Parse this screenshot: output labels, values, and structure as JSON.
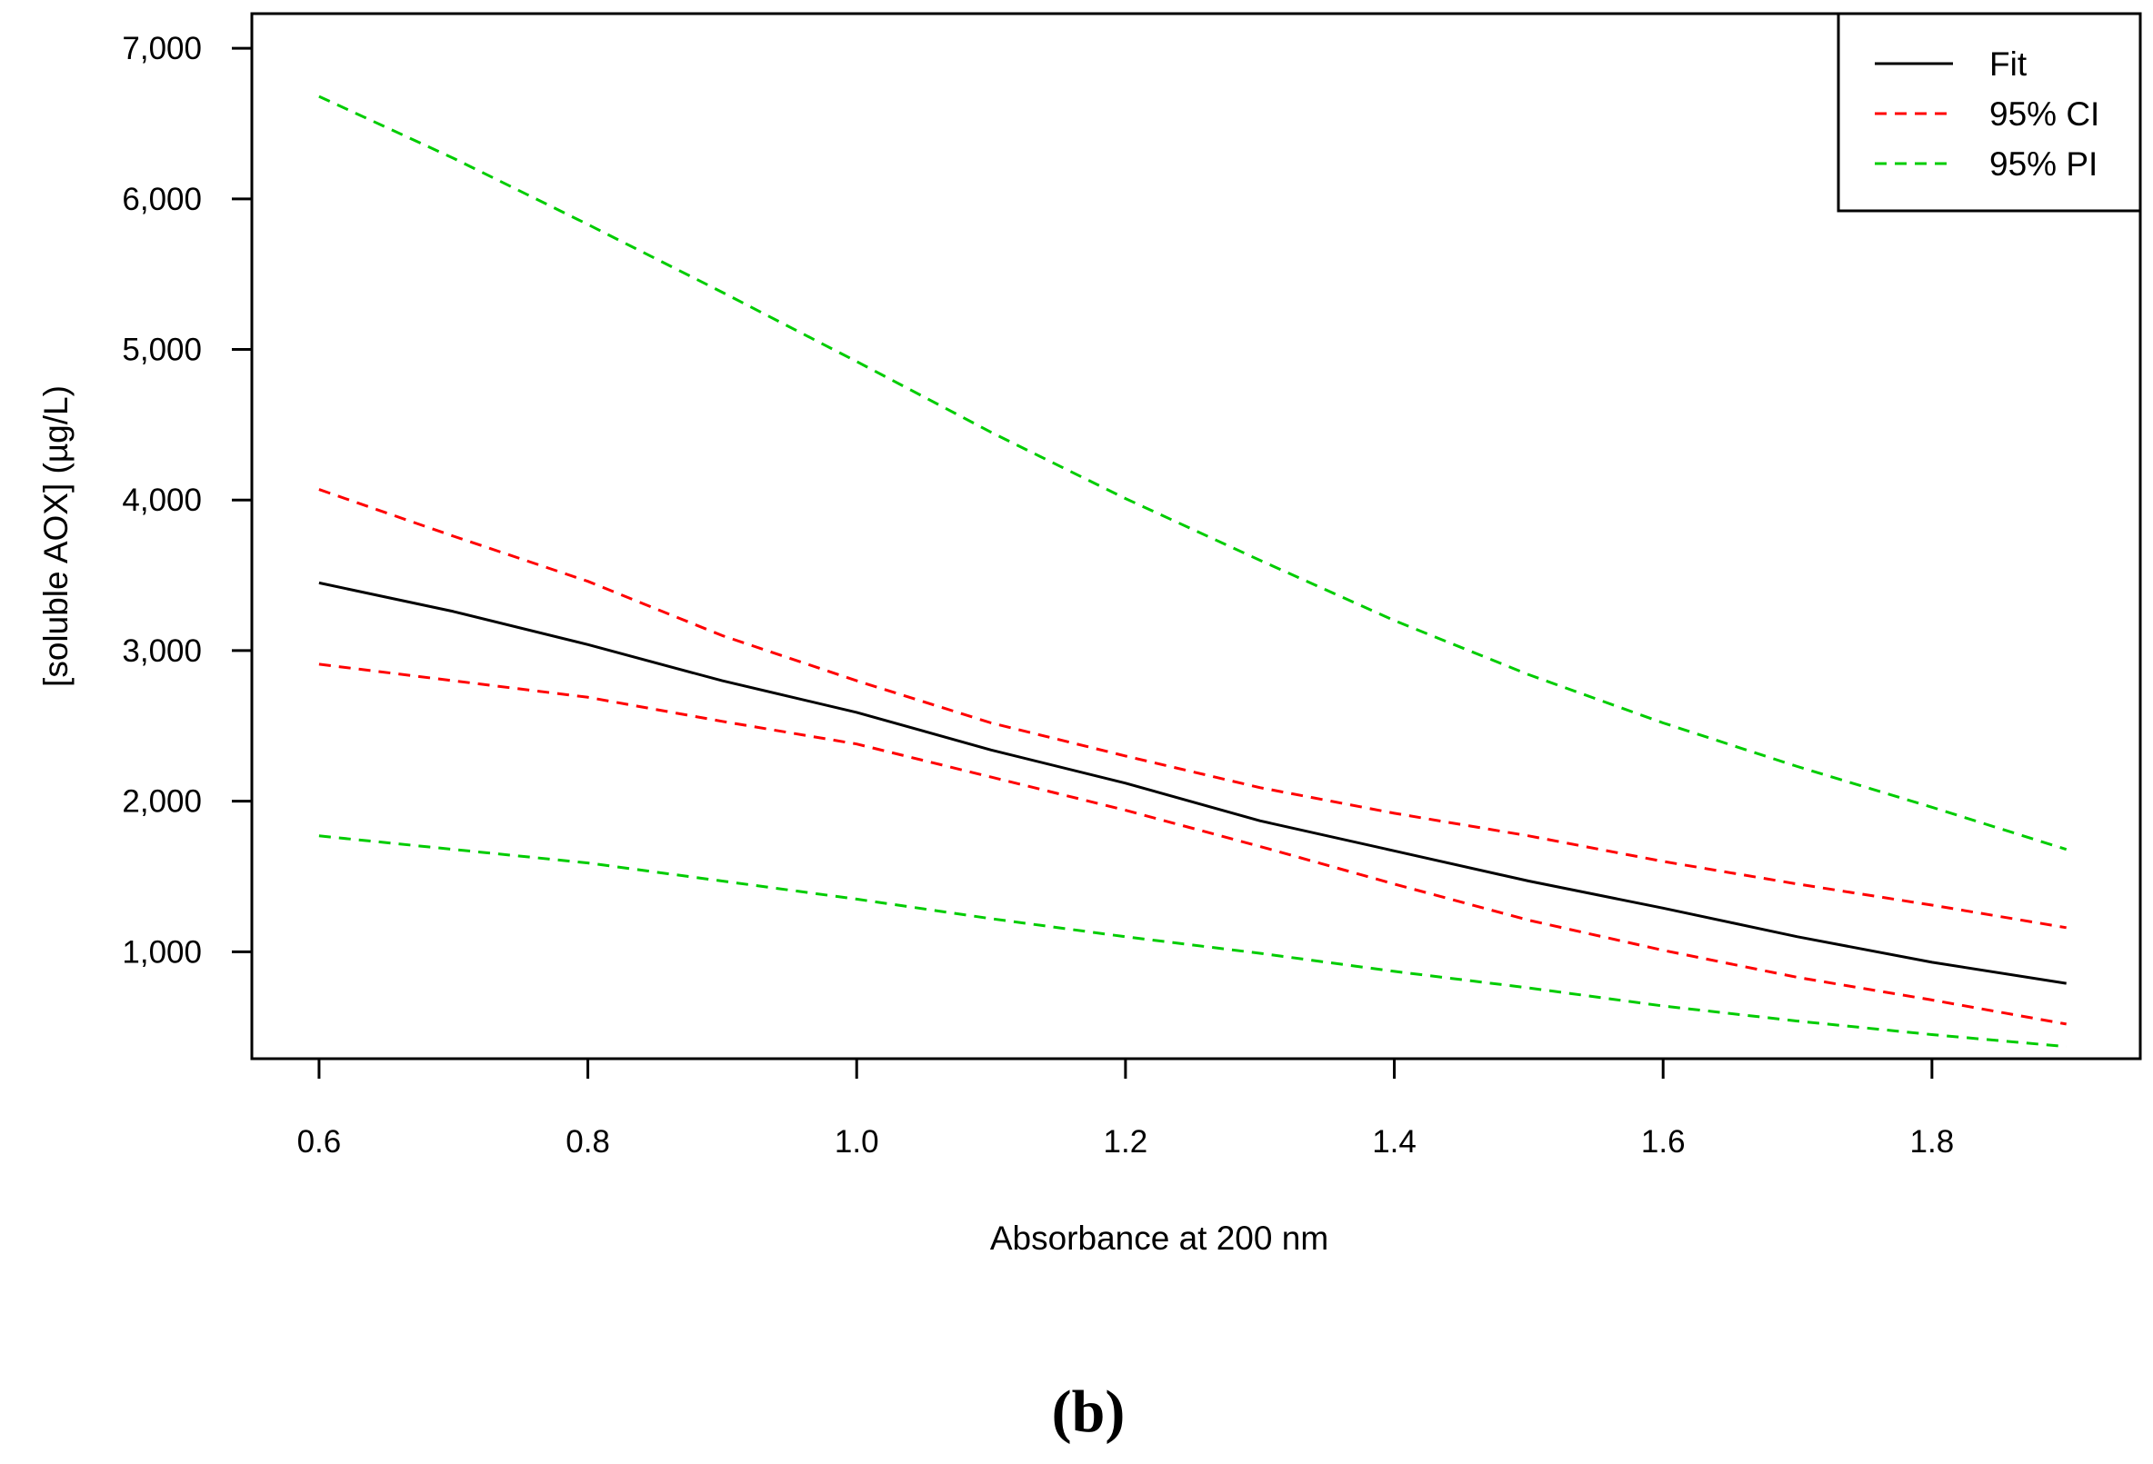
{
  "chart_data": {
    "type": "line",
    "xlabel": "Absorbance at 200 nm",
    "ylabel": "[soluble AOX] (µg/L)",
    "xlim": [
      0.55,
      1.955
    ],
    "ylim": [
      290,
      7230
    ],
    "x_ticks": [
      0.6,
      0.8,
      1.0,
      1.2,
      1.4,
      1.6,
      1.8
    ],
    "x_tick_labels": [
      "0.6",
      "0.8",
      "1.0",
      "1.2",
      "1.4",
      "1.6",
      "1.8"
    ],
    "y_ticks": [
      1000,
      2000,
      3000,
      4000,
      5000,
      6000,
      7000
    ],
    "y_tick_labels": [
      "1,000",
      "2,000",
      "3,000",
      "4,000",
      "5,000",
      "6,000",
      "7,000"
    ],
    "grid": false,
    "legend_position": "top-right",
    "panel_label": "(b)",
    "x": [
      0.6,
      0.7,
      0.8,
      0.9,
      1.0,
      1.1,
      1.2,
      1.3,
      1.4,
      1.5,
      1.6,
      1.7,
      1.8,
      1.9
    ],
    "series": [
      {
        "name": "Fit",
        "color": "#000000",
        "dash": "solid",
        "values": [
          3450,
          3260,
          3040,
          2800,
          2590,
          2340,
          2120,
          1870,
          1670,
          1470,
          1290,
          1100,
          930,
          790
        ]
      },
      {
        "name": "95% CI",
        "color": "#ff0000",
        "dash": "dashed",
        "values": [
          4070,
          3760,
          3460,
          3100,
          2800,
          2520,
          2300,
          2090,
          1920,
          1770,
          1600,
          1450,
          1310,
          1160
        ]
      },
      {
        "name": "95% CI",
        "color": "#ff0000",
        "dash": "dashed",
        "legend": false,
        "values": [
          2910,
          2800,
          2690,
          2530,
          2380,
          2160,
          1940,
          1700,
          1450,
          1210,
          1010,
          830,
          680,
          520
        ]
      },
      {
        "name": "95% PI",
        "color": "#00cc00",
        "dash": "dashed",
        "values": [
          6680,
          6270,
          5830,
          5380,
          4920,
          4450,
          4010,
          3600,
          3200,
          2840,
          2520,
          2230,
          1960,
          1680
        ]
      },
      {
        "name": "95% PI",
        "color": "#00cc00",
        "dash": "dashed",
        "legend": false,
        "values": [
          1770,
          1680,
          1590,
          1470,
          1350,
          1220,
          1100,
          990,
          870,
          760,
          640,
          540,
          450,
          370
        ]
      }
    ],
    "legend": [
      {
        "label": "Fit",
        "color": "#000000",
        "dash": "solid"
      },
      {
        "label": "95% CI",
        "color": "#ff0000",
        "dash": "dashed"
      },
      {
        "label": "95% PI",
        "color": "#00cc00",
        "dash": "dashed"
      }
    ]
  }
}
